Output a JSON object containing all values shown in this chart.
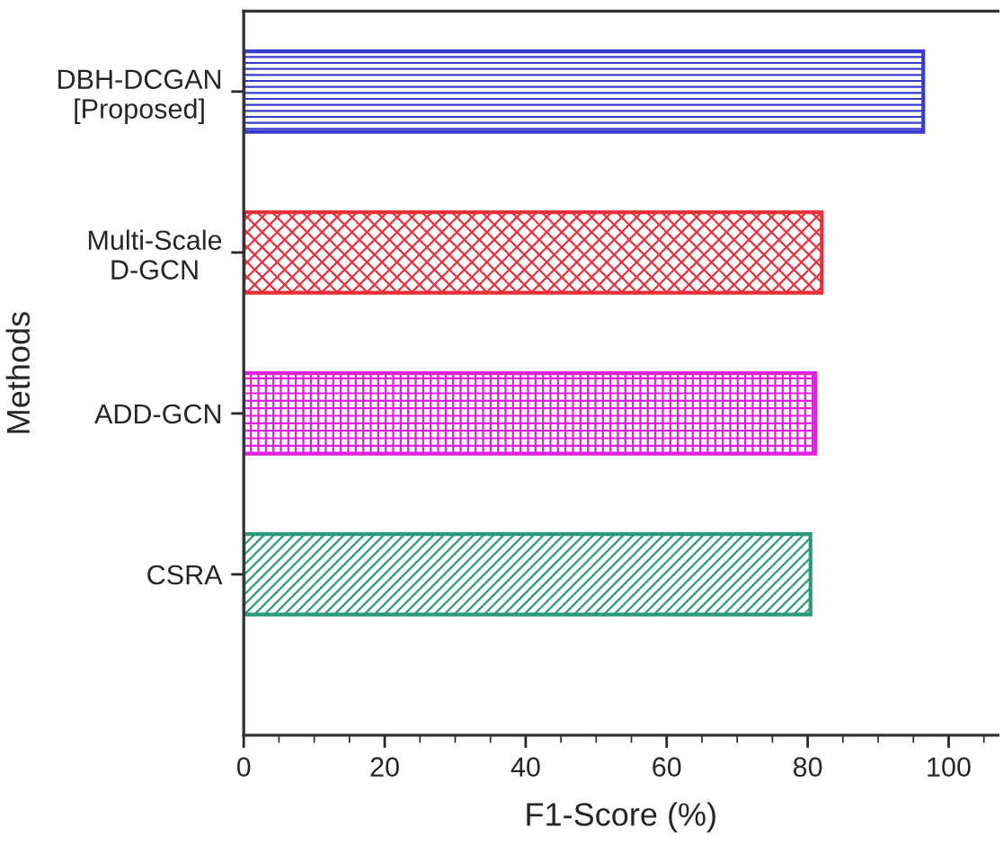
{
  "chart_data": {
    "type": "bar",
    "orientation": "horizontal",
    "xlabel": "F1-Score (%)",
    "ylabel": "Methods",
    "categories": [
      "DBH-DCGAN\n[Proposed]",
      "Multi-Scale\nD-GCN",
      "ADD-GCN",
      "CSRA"
    ],
    "values": [
      96.4,
      82.0,
      81.1,
      80.4
    ],
    "colors": [
      "#3a3ad0",
      "#e8303a",
      "#e020e0",
      "#2a9a7a"
    ],
    "xlim": [
      0,
      107
    ],
    "xticks": [
      0,
      20,
      40,
      60,
      80,
      100
    ],
    "grid": false,
    "legend": false
  }
}
